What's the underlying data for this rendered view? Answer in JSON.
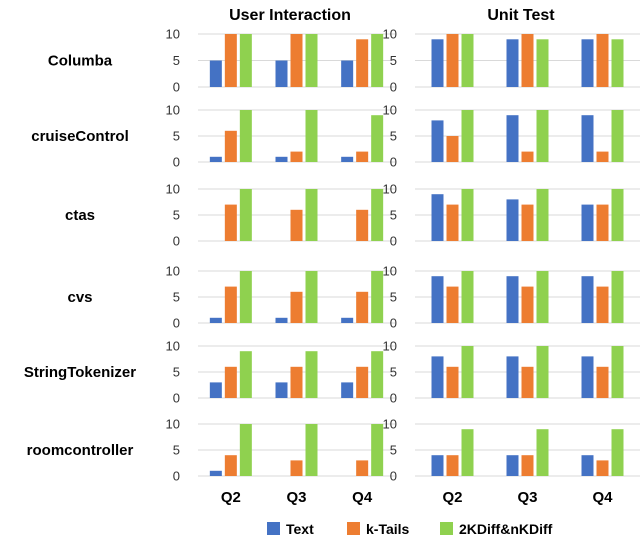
{
  "chart_data": {
    "type": "bar",
    "columns": [
      "User Interaction",
      "Unit Test"
    ],
    "rows": [
      "Columba",
      "cruiseControl",
      "ctas",
      "cvs",
      "StringTokenizer",
      "roomcontroller"
    ],
    "categories": [
      "Q2",
      "Q3",
      "Q4"
    ],
    "series_names": [
      "Text",
      "k-Tails",
      "2KDiff&nKDiff"
    ],
    "colors": [
      "#4472C4",
      "#ED7D31",
      "#8FD14F"
    ],
    "ylim": [
      0,
      10
    ],
    "yticks": [
      "0",
      "5",
      "10"
    ],
    "legend_position": "bottom",
    "grid": true,
    "panels": [
      [
        {
          "series": [
            {
              "name": "Text",
              "values": [
                5,
                5,
                5
              ]
            },
            {
              "name": "k-Tails",
              "values": [
                10,
                10,
                9
              ]
            },
            {
              "name": "2KDiff&nKDiff",
              "values": [
                10,
                10,
                10
              ]
            }
          ]
        },
        {
          "series": [
            {
              "name": "Text",
              "values": [
                9,
                9,
                9
              ]
            },
            {
              "name": "k-Tails",
              "values": [
                10,
                10,
                10
              ]
            },
            {
              "name": "2KDiff&nKDiff",
              "values": [
                10,
                9,
                9
              ]
            }
          ]
        }
      ],
      [
        {
          "series": [
            {
              "name": "Text",
              "values": [
                1,
                1,
                1
              ]
            },
            {
              "name": "k-Tails",
              "values": [
                6,
                2,
                2
              ]
            },
            {
              "name": "2KDiff&nKDiff",
              "values": [
                10,
                10,
                9
              ]
            }
          ]
        },
        {
          "series": [
            {
              "name": "Text",
              "values": [
                8,
                9,
                9
              ]
            },
            {
              "name": "k-Tails",
              "values": [
                5,
                2,
                2
              ]
            },
            {
              "name": "2KDiff&nKDiff",
              "values": [
                10,
                10,
                10
              ]
            }
          ]
        }
      ],
      [
        {
          "series": [
            {
              "name": "Text",
              "values": [
                0,
                0,
                0
              ]
            },
            {
              "name": "k-Tails",
              "values": [
                7,
                6,
                6
              ]
            },
            {
              "name": "2KDiff&nKDiff",
              "values": [
                10,
                10,
                10
              ]
            }
          ]
        },
        {
          "series": [
            {
              "name": "Text",
              "values": [
                9,
                8,
                7
              ]
            },
            {
              "name": "k-Tails",
              "values": [
                7,
                7,
                7
              ]
            },
            {
              "name": "2KDiff&nKDiff",
              "values": [
                10,
                10,
                10
              ]
            }
          ]
        }
      ],
      [
        {
          "series": [
            {
              "name": "Text",
              "values": [
                1,
                1,
                1
              ]
            },
            {
              "name": "k-Tails",
              "values": [
                7,
                6,
                6
              ]
            },
            {
              "name": "2KDiff&nKDiff",
              "values": [
                10,
                10,
                10
              ]
            }
          ]
        },
        {
          "series": [
            {
              "name": "Text",
              "values": [
                9,
                9,
                9
              ]
            },
            {
              "name": "k-Tails",
              "values": [
                7,
                7,
                7
              ]
            },
            {
              "name": "2KDiff&nKDiff",
              "values": [
                10,
                10,
                10
              ]
            }
          ]
        }
      ],
      [
        {
          "series": [
            {
              "name": "Text",
              "values": [
                3,
                3,
                3
              ]
            },
            {
              "name": "k-Tails",
              "values": [
                6,
                6,
                6
              ]
            },
            {
              "name": "2KDiff&nKDiff",
              "values": [
                9,
                9,
                9
              ]
            }
          ]
        },
        {
          "series": [
            {
              "name": "Text",
              "values": [
                8,
                8,
                8
              ]
            },
            {
              "name": "k-Tails",
              "values": [
                6,
                6,
                6
              ]
            },
            {
              "name": "2KDiff&nKDiff",
              "values": [
                10,
                10,
                10
              ]
            }
          ]
        }
      ],
      [
        {
          "series": [
            {
              "name": "Text",
              "values": [
                1,
                0,
                0
              ]
            },
            {
              "name": "k-Tails",
              "values": [
                4,
                3,
                3
              ]
            },
            {
              "name": "2KDiff&nKDiff",
              "values": [
                10,
                10,
                10
              ]
            }
          ]
        },
        {
          "series": [
            {
              "name": "Text",
              "values": [
                4,
                4,
                4
              ]
            },
            {
              "name": "k-Tails",
              "values": [
                4,
                4,
                3
              ]
            },
            {
              "name": "2KDiff&nKDiff",
              "values": [
                9,
                9,
                9
              ]
            }
          ]
        }
      ]
    ]
  }
}
